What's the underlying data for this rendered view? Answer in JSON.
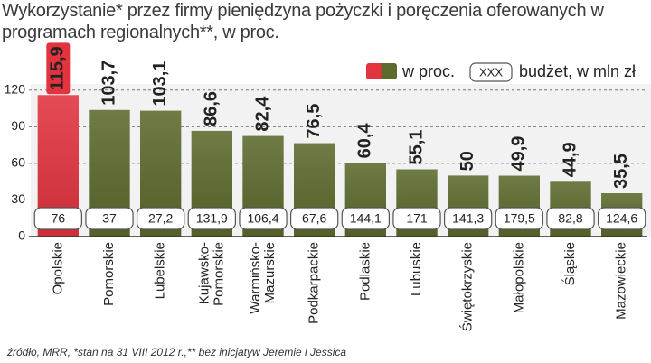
{
  "chart_data": {
    "type": "bar",
    "title": "Wykorzystanie* przez firmy pieniędzyna pożyczki i poręczenia oferowanych w programach regionalnych**, w proc.",
    "categories": [
      "Opolskie",
      "Pomorskie",
      "Lubelskie",
      "Kujawsko-\nPomorskie",
      "Warmińsko-\nMazurskie",
      "Podkarpackie",
      "Podlaskie",
      "Lubuskie",
      "Świętokrzyskie",
      "Małopolskie",
      "Śląskie",
      "Mazowieckie"
    ],
    "series": [
      {
        "name": "w proc.",
        "color": "#5c6a2c",
        "colors": [
          "#e2333f",
          "#5c6a2c",
          "#5c6a2c",
          "#5c6a2c",
          "#5c6a2c",
          "#5c6a2c",
          "#5c6a2c",
          "#5c6a2c",
          "#5c6a2c",
          "#5c6a2c",
          "#5c6a2c",
          "#5c6a2c"
        ],
        "values": [
          115.9,
          103.7,
          103.1,
          86.6,
          82.4,
          76.5,
          60.4,
          55.1,
          50,
          49.9,
          44.9,
          35.5
        ],
        "value_labels": [
          "115,9",
          "103,7",
          "103,1",
          "86,6",
          "82,4",
          "76,5",
          "60,4",
          "55,1",
          "50",
          "49,9",
          "44,9",
          "35,5"
        ]
      },
      {
        "name": "budżet, w mln zł",
        "key_label": "XXX",
        "values": [
          76,
          37,
          27.2,
          131.9,
          106.4,
          67.6,
          144.1,
          171,
          141.3,
          179.5,
          82.8,
          124.6
        ],
        "value_labels": [
          "76",
          "37",
          "27,2",
          "131,9",
          "106,4",
          "67,6",
          "144,1",
          "171",
          "141,3",
          "179,5",
          "82,8",
          "124,6"
        ]
      }
    ],
    "ylim": [
      0,
      125
    ],
    "yticks": [
      0,
      30,
      60,
      90,
      120
    ],
    "grid": true,
    "footer": "źródło, MRR, *stan na 31 VIII 2012 r.,** bez inicjatyw Jeremie i Jessica"
  }
}
